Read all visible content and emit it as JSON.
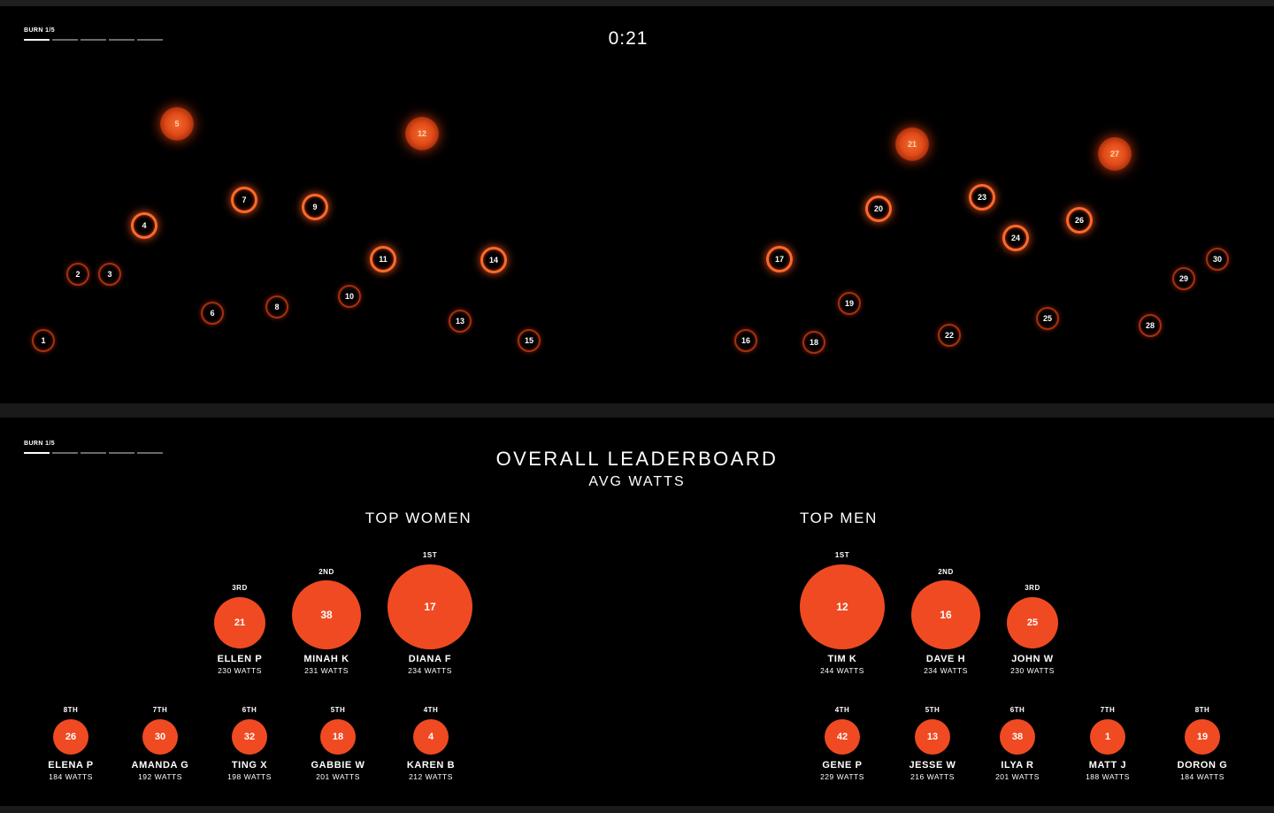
{
  "live": {
    "burn_label": "BURN 1/5",
    "burn_progress": 0.2,
    "timer": "0:21",
    "riders": [
      {
        "number": "1",
        "intensity": 1
      },
      {
        "number": "2",
        "intensity": 1
      },
      {
        "number": "3",
        "intensity": 1
      },
      {
        "number": "4",
        "intensity": 3
      },
      {
        "number": "5",
        "intensity": 4
      },
      {
        "number": "6",
        "intensity": 1
      },
      {
        "number": "7",
        "intensity": 3
      },
      {
        "number": "8",
        "intensity": 1
      },
      {
        "number": "9",
        "intensity": 3
      },
      {
        "number": "10",
        "intensity": 1
      },
      {
        "number": "11",
        "intensity": 3
      },
      {
        "number": "12",
        "intensity": 4
      },
      {
        "number": "13",
        "intensity": 1
      },
      {
        "number": "14",
        "intensity": 3
      },
      {
        "number": "15",
        "intensity": 1
      },
      {
        "number": "16",
        "intensity": 1
      },
      {
        "number": "17",
        "intensity": 3
      },
      {
        "number": "18",
        "intensity": 1
      },
      {
        "number": "19",
        "intensity": 1
      },
      {
        "number": "20",
        "intensity": 3
      },
      {
        "number": "21",
        "intensity": 4
      },
      {
        "number": "22",
        "intensity": 1
      },
      {
        "number": "23",
        "intensity": 3
      },
      {
        "number": "24",
        "intensity": 3
      },
      {
        "number": "25",
        "intensity": 1
      },
      {
        "number": "26",
        "intensity": 3
      },
      {
        "number": "27",
        "intensity": 4
      },
      {
        "number": "28",
        "intensity": 1
      },
      {
        "number": "29",
        "intensity": 1
      },
      {
        "number": "30",
        "intensity": 1
      }
    ]
  },
  "leaderboard": {
    "burn_label": "BURN 1/5",
    "burn_progress": 0.2,
    "title": "OVERALL LEADERBOARD",
    "subtitle": "AVG WATTS",
    "women_title": "TOP WOMEN",
    "men_title": "TOP MEN",
    "accent_color": "#f04a22",
    "women": [
      {
        "rank": "1ST",
        "number": "17",
        "name": "DIANA F",
        "watts": "234 WATTS"
      },
      {
        "rank": "2ND",
        "number": "38",
        "name": "MINAH K",
        "watts": "231 WATTS"
      },
      {
        "rank": "3RD",
        "number": "21",
        "name": "ELLEN P",
        "watts": "230 WATTS"
      },
      {
        "rank": "4TH",
        "number": "4",
        "name": "KAREN B",
        "watts": "212 WATTS"
      },
      {
        "rank": "5TH",
        "number": "18",
        "name": "GABBIE W",
        "watts": "201 WATTS"
      },
      {
        "rank": "6TH",
        "number": "32",
        "name": "TING X",
        "watts": "198 WATTS"
      },
      {
        "rank": "7TH",
        "number": "30",
        "name": "AMANDA G",
        "watts": "192 WATTS"
      },
      {
        "rank": "8TH",
        "number": "26",
        "name": "ELENA P",
        "watts": "184 WATTS"
      }
    ],
    "men": [
      {
        "rank": "1ST",
        "number": "12",
        "name": "TIM K",
        "watts": "244 WATTS"
      },
      {
        "rank": "2ND",
        "number": "16",
        "name": "DAVE H",
        "watts": "234 WATTS"
      },
      {
        "rank": "3RD",
        "number": "25",
        "name": "JOHN W",
        "watts": "230 WATTS"
      },
      {
        "rank": "4TH",
        "number": "42",
        "name": "GENE P",
        "watts": "229 WATTS"
      },
      {
        "rank": "5TH",
        "number": "13",
        "name": "JESSE W",
        "watts": "216 WATTS"
      },
      {
        "rank": "6TH",
        "number": "38",
        "name": "ILYA R",
        "watts": "201 WATTS"
      },
      {
        "rank": "7TH",
        "number": "1",
        "name": "MATT J",
        "watts": "188 WATTS"
      },
      {
        "rank": "8TH",
        "number": "19",
        "name": "DORON G",
        "watts": "184 WATTS"
      }
    ]
  }
}
